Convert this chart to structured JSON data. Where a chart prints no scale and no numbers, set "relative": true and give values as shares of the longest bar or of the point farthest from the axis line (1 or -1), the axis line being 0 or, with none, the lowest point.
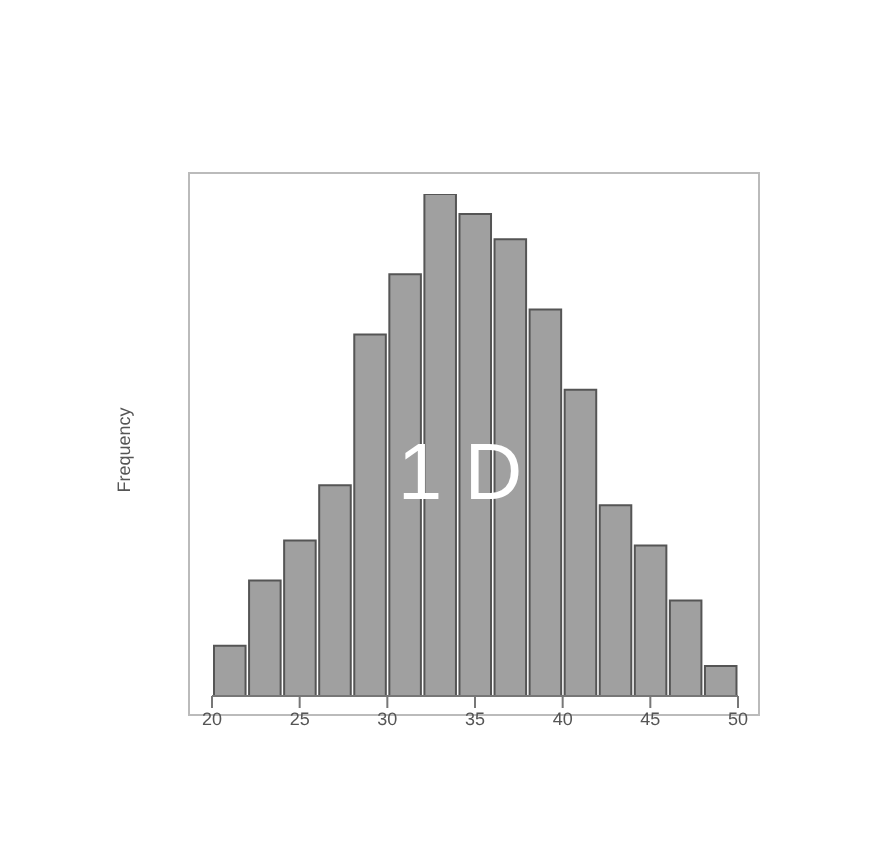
{
  "chart_data": {
    "type": "bar",
    "relative": true,
    "ylabel": "Frequency",
    "annotations": [
      "1 D"
    ],
    "color": "#a0a0a0",
    "x": [
      21,
      23,
      25,
      27,
      29,
      31,
      33,
      35,
      37,
      39,
      41,
      43,
      45,
      47,
      49
    ],
    "values": [
      0.1,
      0.23,
      0.31,
      0.42,
      0.72,
      0.84,
      1,
      0.96,
      0.91,
      0.77,
      0.61,
      0.38,
      0.3,
      0.19,
      0.06
    ],
    "xlim": [
      20,
      50
    ],
    "xticks": [
      20,
      25,
      30,
      35,
      40,
      45,
      50
    ],
    "grid": false
  }
}
